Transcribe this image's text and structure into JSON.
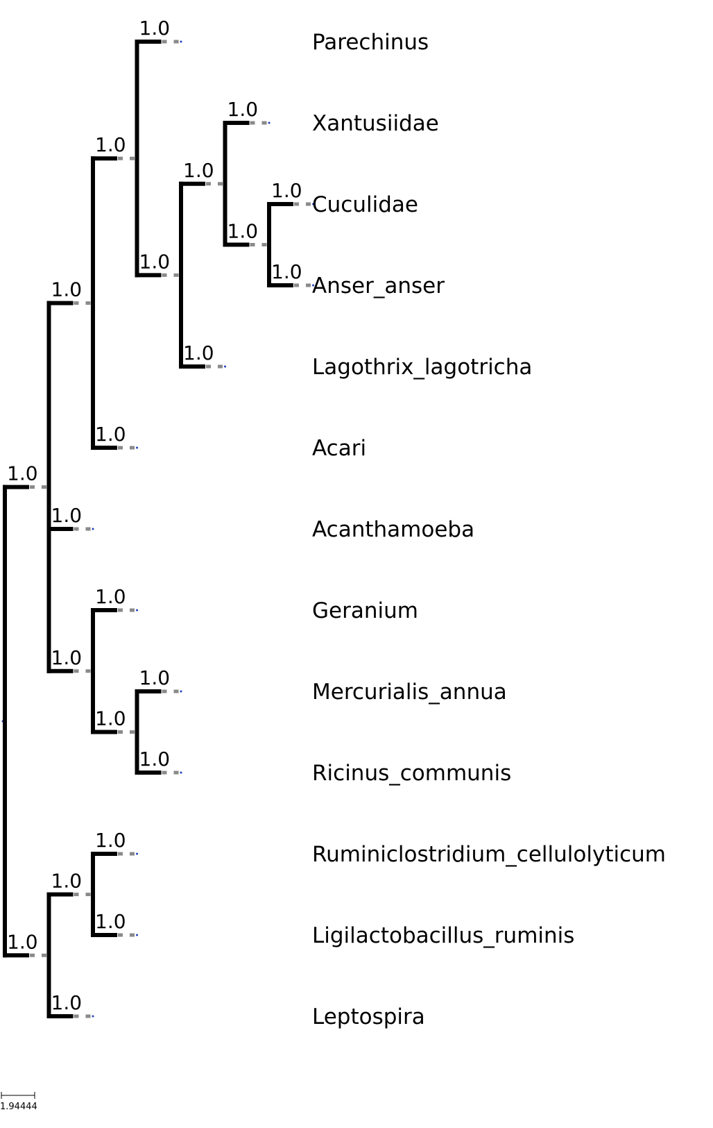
{
  "tree": {
    "scale_label": "1.94444",
    "support_label": "1.0",
    "leaves": [
      "Parechinus",
      "Xantusiidae",
      "Cuculidae",
      "Anser_anser",
      "Lagothrix_lagotricha",
      "Acari",
      "Acanthamoeba",
      "Geranium",
      "Mercurialis_annua",
      "Ricinus_communis",
      "Ruminiclostridium_cellulolyticum",
      "Ligilactobacillus_ruminis",
      "Leptospira"
    ],
    "colors": {
      "branch": "#000000",
      "dash": "#8a8a8a",
      "node": "#1f3fbf"
    }
  }
}
